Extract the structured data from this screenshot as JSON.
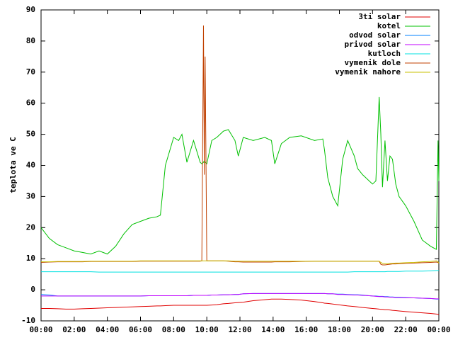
{
  "chart_data": {
    "type": "line",
    "ylabel": "teplota ve C",
    "legend": "top right",
    "xlim": [
      0,
      24
    ],
    "xticks": [
      {
        "value": 0,
        "label": "00:00"
      },
      {
        "value": 2,
        "label": "02:00"
      },
      {
        "value": 4,
        "label": "04:00"
      },
      {
        "value": 6,
        "label": "06:00"
      },
      {
        "value": 8,
        "label": "08:00"
      },
      {
        "value": 10,
        "label": "10:00"
      },
      {
        "value": 12,
        "label": "12:00"
      },
      {
        "value": 14,
        "label": "14:00"
      },
      {
        "value": 16,
        "label": "16:00"
      },
      {
        "value": 18,
        "label": "18:00"
      },
      {
        "value": 20,
        "label": "20:00"
      },
      {
        "value": 22,
        "label": "22:00"
      },
      {
        "value": 24,
        "label": "00:00"
      }
    ],
    "ylim": [
      -10,
      90
    ],
    "yticks": [
      -10,
      0,
      10,
      20,
      30,
      40,
      50,
      60,
      70,
      80,
      90
    ],
    "x": [
      0,
      0.5,
      1,
      1.5,
      2,
      2.5,
      3,
      3.5,
      4,
      4.5,
      5,
      5.5,
      6,
      6.5,
      7,
      7.2,
      7.5,
      8,
      8.3,
      8.5,
      8.8,
      9.2,
      9.6,
      9.7,
      9.8,
      9.85,
      9.9,
      10,
      10.3,
      10.6,
      11,
      11.3,
      11.7,
      11.9,
      12.2,
      12.8,
      13.5,
      13.9,
      14.1,
      14.5,
      15,
      15.7,
      16.5,
      17,
      17.1,
      17.3,
      17.6,
      17.9,
      18.2,
      18.5,
      18.9,
      19.1,
      19.4,
      19.8,
      20,
      20.2,
      20.4,
      20.5,
      20.6,
      20.75,
      20.9,
      21.05,
      21.2,
      21.4,
      21.6,
      22,
      22.5,
      23,
      23.5,
      23.85,
      23.95,
      24
    ],
    "series": [
      {
        "name": "3ti solar",
        "color": "#e00000",
        "values": [
          -6,
          -6,
          -6.1,
          -6.2,
          -6.2,
          -6.1,
          -6,
          -5.9,
          -5.8,
          -5.7,
          -5.6,
          -5.5,
          -5.4,
          -5.3,
          -5.2,
          -5.2,
          -5.1,
          -5,
          -5,
          -5,
          -5,
          -5,
          -5,
          -5,
          -5,
          -5,
          -5,
          -5,
          -4.9,
          -4.8,
          -4.5,
          -4.4,
          -4.2,
          -4.1,
          -4,
          -3.5,
          -3.2,
          -3,
          -3,
          -3,
          -3.1,
          -3.3,
          -3.8,
          -4.2,
          -4.3,
          -4.4,
          -4.6,
          -4.8,
          -5,
          -5.2,
          -5.4,
          -5.5,
          -5.7,
          -5.9,
          -6,
          -6.1,
          -6.2,
          -6.3,
          -6.3,
          -6.4,
          -6.4,
          -6.5,
          -6.6,
          -6.7,
          -6.8,
          -7,
          -7.2,
          -7.4,
          -7.6,
          -7.8,
          -7.9,
          -8
        ]
      },
      {
        "name": "kotel",
        "color": "#00c000",
        "values": [
          20,
          16.5,
          14.5,
          13.5,
          12.5,
          12,
          11.5,
          12.5,
          11.5,
          14,
          18,
          21,
          22,
          23,
          23.5,
          24,
          40,
          49,
          48,
          50,
          41,
          48,
          41,
          40.5,
          41,
          41.5,
          41,
          40.5,
          48,
          49,
          51,
          51.5,
          48,
          43,
          49,
          48,
          49,
          48,
          40.5,
          47,
          49,
          49.5,
          48,
          48.5,
          45,
          36,
          30,
          27,
          42,
          48,
          43,
          39,
          37,
          35,
          34,
          35,
          62,
          50,
          33,
          48,
          35,
          43,
          42,
          34,
          30,
          27,
          22,
          16,
          14,
          13,
          48,
          35
        ]
      },
      {
        "name": "odvod solar",
        "color": "#0080ff",
        "values": [
          -1.5,
          -1.7,
          -2,
          -2,
          -2,
          -2,
          -2,
          -2,
          -2,
          -2,
          -2,
          -2,
          -2,
          -1.9,
          -1.9,
          -1.9,
          -1.9,
          -1.9,
          -1.9,
          -1.9,
          -1.9,
          -1.8,
          -1.8,
          -1.8,
          -1.8,
          -1.8,
          -1.8,
          -1.8,
          -1.7,
          -1.7,
          -1.6,
          -1.6,
          -1.5,
          -1.5,
          -1.3,
          -1.2,
          -1.2,
          -1.2,
          -1.2,
          -1.2,
          -1.2,
          -1.2,
          -1.2,
          -1.2,
          -1.2,
          -1.3,
          -1.3,
          -1.4,
          -1.4,
          -1.5,
          -1.6,
          -1.6,
          -1.7,
          -1.9,
          -2,
          -2,
          -2.1,
          -2.1,
          -2.1,
          -2.2,
          -2.2,
          -2.3,
          -2.3,
          -2.4,
          -2.4,
          -2.5,
          -2.6,
          -2.7,
          -2.8,
          -3,
          -3,
          -3
        ]
      },
      {
        "name": "privod solar",
        "color": "#c000ff",
        "values": [
          -2,
          -2,
          -2,
          -2,
          -2,
          -2,
          -2,
          -2,
          -2,
          -2,
          -2,
          -2,
          -2,
          -1.9,
          -1.9,
          -1.9,
          -1.9,
          -1.9,
          -1.9,
          -1.9,
          -1.9,
          -1.8,
          -1.8,
          -1.8,
          -1.8,
          -1.8,
          -1.8,
          -1.8,
          -1.7,
          -1.7,
          -1.6,
          -1.6,
          -1.5,
          -1.5,
          -1.3,
          -1.2,
          -1.2,
          -1.2,
          -1.2,
          -1.2,
          -1.2,
          -1.2,
          -1.2,
          -1.2,
          -1.2,
          -1.3,
          -1.3,
          -1.5,
          -1.5,
          -1.6,
          -1.7,
          -1.7,
          -1.8,
          -1.9,
          -2,
          -2.1,
          -2.2,
          -2.2,
          -2.2,
          -2.3,
          -2.3,
          -2.4,
          -2.4,
          -2.5,
          -2.5,
          -2.6,
          -2.6,
          -2.7,
          -2.8,
          -2.9,
          -2.9,
          -2.9
        ]
      },
      {
        "name": "kutloch",
        "color": "#00e0e0",
        "values": [
          5.8,
          5.8,
          5.8,
          5.8,
          5.8,
          5.8,
          5.8,
          5.7,
          5.7,
          5.7,
          5.7,
          5.7,
          5.7,
          5.7,
          5.7,
          5.7,
          5.7,
          5.7,
          5.7,
          5.7,
          5.7,
          5.7,
          5.7,
          5.7,
          5.7,
          5.7,
          5.7,
          5.7,
          5.7,
          5.7,
          5.7,
          5.7,
          5.7,
          5.7,
          5.7,
          5.7,
          5.7,
          5.7,
          5.7,
          5.7,
          5.7,
          5.7,
          5.7,
          5.7,
          5.7,
          5.7,
          5.7,
          5.7,
          5.7,
          5.7,
          5.8,
          5.8,
          5.8,
          5.8,
          5.8,
          5.8,
          5.8,
          5.8,
          5.8,
          5.8,
          5.9,
          5.9,
          5.9,
          5.9,
          5.9,
          6,
          6,
          6,
          6.1,
          6.2,
          6.2,
          6.2
        ]
      },
      {
        "name": "vymenik dole",
        "color": "#c04000",
        "values": [
          8.8,
          8.9,
          9,
          9,
          9,
          9,
          9.1,
          9.1,
          9.1,
          9.1,
          9.1,
          9.1,
          9.2,
          9.2,
          9.2,
          9.2,
          9.2,
          9.2,
          9.2,
          9.2,
          9.2,
          9.2,
          9.2,
          9.3,
          85,
          37,
          75,
          9.3,
          9.3,
          9.3,
          9.3,
          9.2,
          9,
          9,
          8.9,
          8.9,
          8.9,
          8.9,
          9,
          9,
          9,
          9.1,
          9.2,
          9.2,
          9.2,
          9.2,
          9.2,
          9.2,
          9.2,
          9.2,
          9.2,
          9.2,
          9.2,
          9.2,
          9.2,
          9.2,
          9.2,
          8.2,
          8,
          8,
          8.1,
          8.2,
          8.3,
          8.3,
          8.4,
          8.5,
          8.6,
          8.7,
          8.8,
          8.9,
          8.8,
          8.5
        ]
      },
      {
        "name": "vymenik nahore",
        "color": "#c8c000",
        "values": [
          9,
          9,
          9.1,
          9.1,
          9.1,
          9.1,
          9.2,
          9.2,
          9.2,
          9.2,
          9.2,
          9.2,
          9.3,
          9.3,
          9.3,
          9.3,
          9.3,
          9.3,
          9.3,
          9.3,
          9.3,
          9.3,
          9.3,
          9.3,
          9.3,
          9.3,
          9.3,
          9.3,
          9.3,
          9.3,
          9.3,
          9.3,
          9.2,
          9.2,
          9.2,
          9.2,
          9.2,
          9.2,
          9.2,
          9.2,
          9.2,
          9.2,
          9.2,
          9.2,
          9.2,
          9.2,
          9.2,
          9.2,
          9.2,
          9.2,
          9.2,
          9.2,
          9.2,
          9.2,
          9.2,
          9.2,
          9.2,
          8.8,
          8.5,
          8.4,
          8.4,
          8.5,
          8.5,
          8.6,
          8.6,
          8.7,
          8.8,
          9,
          9.1,
          9.3,
          9,
          8.6
        ]
      }
    ]
  }
}
